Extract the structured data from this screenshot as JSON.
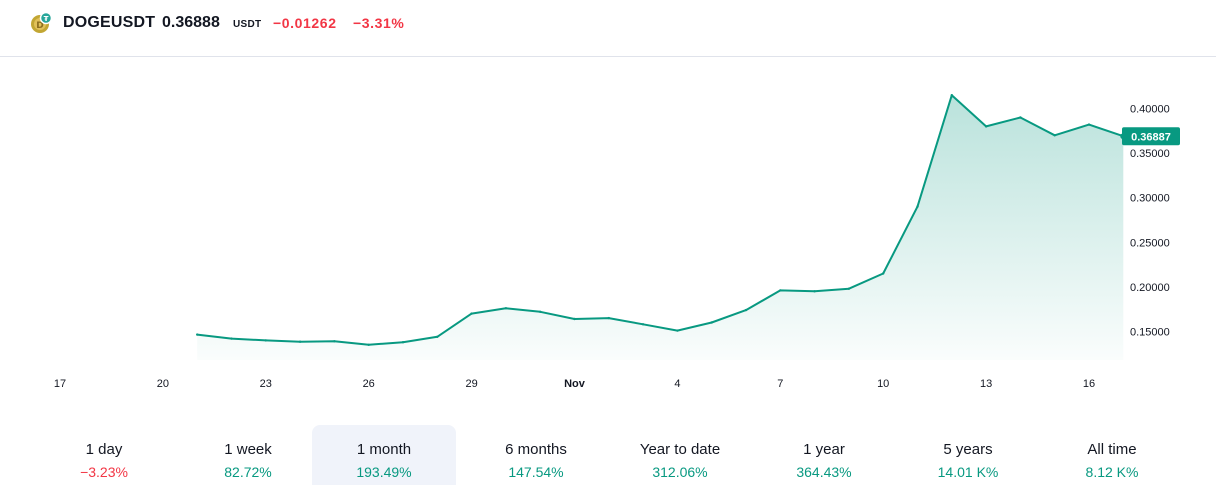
{
  "header": {
    "symbol": "DOGEUSDT",
    "price": "0.36888",
    "currency": "USDT",
    "change": "−0.01262",
    "change_pct": "−3.31%",
    "logo_icon": "doge-coin-icon"
  },
  "colors": {
    "line": "#089981",
    "negative": "#f23645",
    "positive": "#089981",
    "price_tag": "#089981"
  },
  "chart_data": {
    "type": "area",
    "title": "",
    "xlabel": "",
    "ylabel": "",
    "x_ticks": [
      "17",
      "20",
      "23",
      "26",
      "29",
      "Nov",
      "4",
      "7",
      "10",
      "13",
      "16"
    ],
    "y_ticks": [
      "0.40000",
      "0.35000",
      "0.30000",
      "0.25000",
      "0.20000",
      "0.15000"
    ],
    "ylim": [
      0.118,
      0.432
    ],
    "current_price_label": "0.36887",
    "x_start": "2024-10-17",
    "x": [
      "2024-10-21",
      "2024-10-22",
      "2024-10-23",
      "2024-10-24",
      "2024-10-25",
      "2024-10-26",
      "2024-10-27",
      "2024-10-28",
      "2024-10-29",
      "2024-10-30",
      "2024-10-31",
      "2024-11-01",
      "2024-11-02",
      "2024-11-03",
      "2024-11-04",
      "2024-11-05",
      "2024-11-06",
      "2024-11-07",
      "2024-11-08",
      "2024-11-09",
      "2024-11-10",
      "2024-11-11",
      "2024-11-12",
      "2024-11-13",
      "2024-11-14",
      "2024-11-15",
      "2024-11-16",
      "2024-11-17"
    ],
    "values": [
      0.1465,
      0.142,
      0.14,
      0.1385,
      0.139,
      0.135,
      0.138,
      0.144,
      0.17,
      0.176,
      0.172,
      0.164,
      0.165,
      0.158,
      0.151,
      0.16,
      0.174,
      0.196,
      0.195,
      0.198,
      0.215,
      0.29,
      0.415,
      0.38,
      0.39,
      0.37,
      0.382,
      0.369
    ],
    "grid": false,
    "legend": "none"
  },
  "periods": [
    {
      "label": "1 day",
      "value": "−3.23%",
      "trend": "neg"
    },
    {
      "label": "1 week",
      "value": "82.72%",
      "trend": "pos"
    },
    {
      "label": "1 month",
      "value": "193.49%",
      "trend": "pos",
      "active": true
    },
    {
      "label": "6 months",
      "value": "147.54%",
      "trend": "pos"
    },
    {
      "label": "Year to date",
      "value": "312.06%",
      "trend": "pos"
    },
    {
      "label": "1 year",
      "value": "364.43%",
      "trend": "pos"
    },
    {
      "label": "5 years",
      "value": "14.01 K%",
      "trend": "pos"
    },
    {
      "label": "All time",
      "value": "8.12 K%",
      "trend": "pos"
    }
  ]
}
